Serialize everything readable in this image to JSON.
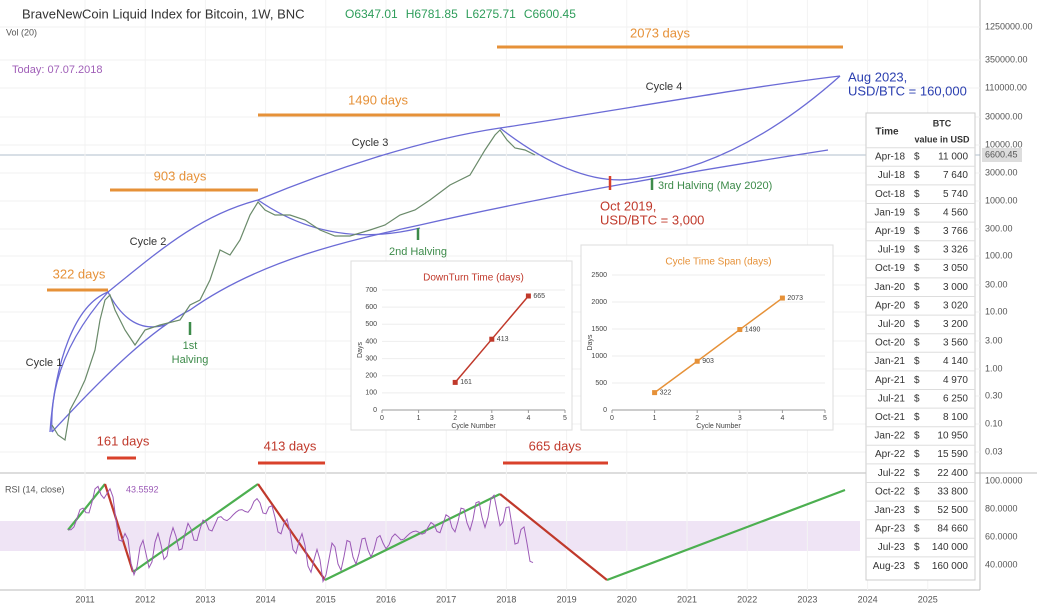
{
  "header": {
    "title": "BraveNewCoin Liquid Index for Bitcoin, 1W, BNC",
    "ohlc": [
      "O6347.01",
      "H6781.85",
      "L6275.71",
      "C6600.45"
    ],
    "indicator": "Vol (20)",
    "today": "Today: 07.07.2018"
  },
  "price_axis": [
    "1250000.00",
    "350000.00",
    "110000.00",
    "30000.00",
    "10000.00",
    "3000.00",
    "1000.00",
    "300.00",
    "100.00",
    "30.00",
    "10.00",
    "3.00",
    "1.00",
    "0.30",
    "0.10",
    "0.03"
  ],
  "last_price": "6600.45",
  "rsi": {
    "label": "RSI (14, close)",
    "value": "43.5592",
    "axis": [
      "100.0000",
      "80.0000",
      "60.0000",
      "40.0000"
    ]
  },
  "years": [
    "2011",
    "2012",
    "2013",
    "2014",
    "2015",
    "2016",
    "2017",
    "2018",
    "2019",
    "2020",
    "2021",
    "2022",
    "2023",
    "2024",
    "2025"
  ],
  "annotations": {
    "cycle_spans": [
      "322 days",
      "903 days",
      "1490 days",
      "2073 days"
    ],
    "downturns": [
      "161 days",
      "413 days",
      "665 days"
    ],
    "cycles": [
      "Cycle 1",
      "Cycle 2",
      "Cycle 3",
      "Cycle 4"
    ],
    "halvings": [
      [
        "1st",
        "Halving"
      ],
      [
        "2nd Halving"
      ],
      [
        "3rd Halving (May 2020)"
      ]
    ],
    "bottom": [
      "Oct 2019,",
      "USD/BTC = 3,000"
    ],
    "top": [
      "Aug 2023,",
      "USD/BTC = 160,000"
    ]
  },
  "table": {
    "header": [
      "Time",
      "BTC",
      "value in USD"
    ],
    "rows": [
      [
        "Apr-18",
        "$",
        "11 000"
      ],
      [
        "Jul-18",
        "$",
        "7 640"
      ],
      [
        "Oct-18",
        "$",
        "5 740"
      ],
      [
        "Jan-19",
        "$",
        "4 560"
      ],
      [
        "Apr-19",
        "$",
        "3 766"
      ],
      [
        "Jul-19",
        "$",
        "3 326"
      ],
      [
        "Oct-19",
        "$",
        "3 050"
      ],
      [
        "Jan-20",
        "$",
        "3 000"
      ],
      [
        "Apr-20",
        "$",
        "3 020"
      ],
      [
        "Jul-20",
        "$",
        "3 200"
      ],
      [
        "Oct-20",
        "$",
        "3 560"
      ],
      [
        "Jan-21",
        "$",
        "4 140"
      ],
      [
        "Apr-21",
        "$",
        "4 970"
      ],
      [
        "Jul-21",
        "$",
        "6 250"
      ],
      [
        "Oct-21",
        "$",
        "8 100"
      ],
      [
        "Jan-22",
        "$",
        "10 950"
      ],
      [
        "Apr-22",
        "$",
        "15 590"
      ],
      [
        "Jul-22",
        "$",
        "22 400"
      ],
      [
        "Oct-22",
        "$",
        "33 800"
      ],
      [
        "Jan-23",
        "$",
        "52 500"
      ],
      [
        "Apr-23",
        "$",
        "84 660"
      ],
      [
        "Jul-23",
        "$",
        "140 000"
      ],
      [
        "Aug-23",
        "$",
        "160 000"
      ]
    ]
  },
  "chart_data": [
    {
      "type": "line",
      "title": "DownTurn Time (days)",
      "x_label": "Cycle Number",
      "y_label": "Days",
      "x": [
        2,
        3,
        4
      ],
      "series": [
        {
          "color": "#c0392b",
          "values": [
            161,
            413,
            665
          ]
        }
      ],
      "xlim": [
        0,
        5
      ],
      "xticks": [
        0,
        1,
        2,
        3,
        4,
        5
      ],
      "ylim": [
        0,
        700
      ],
      "yticks": [
        0,
        100,
        200,
        300,
        400,
        500,
        600,
        700
      ]
    },
    {
      "type": "line",
      "title": "Cycle Time Span (days)",
      "x_label": "Cycle Number",
      "y_label": "Days",
      "x": [
        1,
        2,
        3,
        4
      ],
      "series": [
        {
          "color": "#e69138",
          "values": [
            322,
            903,
            1490,
            2073
          ]
        }
      ],
      "xlim": [
        0,
        5
      ],
      "xticks": [
        0,
        1,
        2,
        3,
        4,
        5
      ],
      "ylim": [
        0,
        2500
      ],
      "yticks": [
        0,
        500,
        1000,
        1500,
        2000,
        2500
      ]
    }
  ]
}
